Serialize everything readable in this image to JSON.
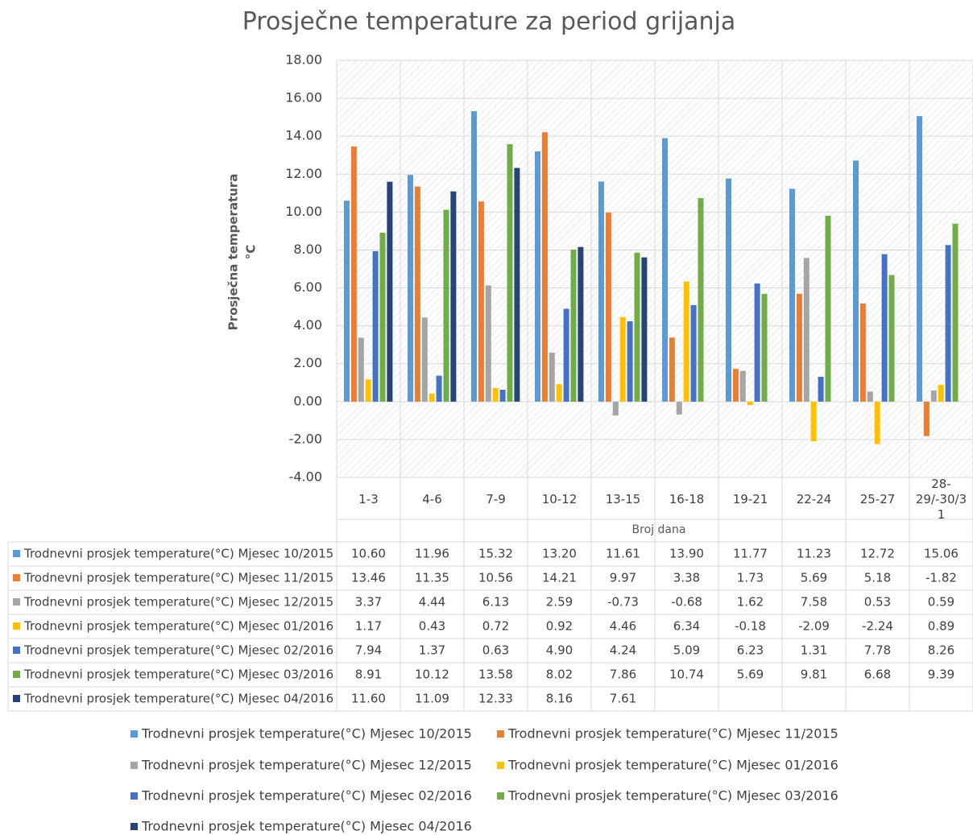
{
  "chart_data": {
    "type": "bar",
    "title": "Prosječne temperature za period grijanja",
    "ylabel": [
      "Prosječna temperatura",
      "°C"
    ],
    "xlabel": "Broj dana",
    "categories": [
      "1-3",
      "4-6",
      "7-9",
      "10-12",
      "13-15",
      "16-18",
      "19-21",
      "22-24",
      "25-27",
      "28-29/-30/31"
    ],
    "ylim": [
      -4,
      18
    ],
    "yticks": [
      {
        "value": 18,
        "label": "18.00"
      },
      {
        "value": 16,
        "label": "16.00"
      },
      {
        "value": 14,
        "label": "14.00"
      },
      {
        "value": 12,
        "label": "12.00"
      },
      {
        "value": 10,
        "label": "10.00"
      },
      {
        "value": 8,
        "label": "8.00"
      },
      {
        "value": 6,
        "label": "6.00"
      },
      {
        "value": 4,
        "label": "4.00"
      },
      {
        "value": 2,
        "label": "2.00"
      },
      {
        "value": 0,
        "label": "0.00"
      },
      {
        "value": -2,
        "label": "-2.00"
      },
      {
        "value": -4,
        "label": "-4.00"
      }
    ],
    "grid": true,
    "series": [
      {
        "name": "Trodnevni prosjek temperature(°C) Mjesec 10/2015",
        "color": "#5b9bd5",
        "values": [
          10.6,
          11.96,
          15.32,
          13.2,
          11.61,
          13.9,
          11.77,
          11.23,
          12.72,
          15.06
        ],
        "value_labels": [
          "10.60",
          "11.96",
          "15.32",
          "13.20",
          "11.61",
          "13.90",
          "11.77",
          "11.23",
          "12.72",
          "15.06"
        ]
      },
      {
        "name": "Trodnevni prosjek temperature(°C) Mjesec 11/2015",
        "color": "#ed7d31",
        "values": [
          13.46,
          11.35,
          10.56,
          14.21,
          9.97,
          3.38,
          1.73,
          5.69,
          5.18,
          -1.82
        ],
        "value_labels": [
          "13.46",
          "11.35",
          "10.56",
          "14.21",
          "9.97",
          "3.38",
          "1.73",
          "5.69",
          "5.18",
          "-1.82"
        ]
      },
      {
        "name": "Trodnevni prosjek temperature(°C) Mjesec 12/2015",
        "color": "#a5a5a5",
        "values": [
          3.37,
          4.44,
          6.13,
          2.59,
          -0.73,
          -0.68,
          1.62,
          7.58,
          0.53,
          0.59
        ],
        "value_labels": [
          "3.37",
          "4.44",
          "6.13",
          "2.59",
          "-0.73",
          "-0.68",
          "1.62",
          "7.58",
          "0.53",
          "0.59"
        ]
      },
      {
        "name": "Trodnevni prosjek temperature(°C) Mjesec 01/2016",
        "color": "#ffc000",
        "values": [
          1.17,
          0.43,
          0.72,
          0.92,
          4.46,
          6.34,
          -0.18,
          -2.09,
          -2.24,
          0.89
        ],
        "value_labels": [
          "1.17",
          "0.43",
          "0.72",
          "0.92",
          "4.46",
          "6.34",
          "-0.18",
          "-2.09",
          "-2.24",
          "0.89"
        ]
      },
      {
        "name": "Trodnevni prosjek temperature(°C) Mjesec 02/2016",
        "color": "#4472c4",
        "values": [
          7.94,
          1.37,
          0.63,
          4.9,
          4.24,
          5.09,
          6.23,
          1.31,
          7.78,
          8.26
        ],
        "value_labels": [
          "7.94",
          "1.37",
          "0.63",
          "4.90",
          "4.24",
          "5.09",
          "6.23",
          "1.31",
          "7.78",
          "8.26"
        ]
      },
      {
        "name": "Trodnevni prosjek temperature(°C) Mjesec 03/2016",
        "color": "#70ad47",
        "values": [
          8.91,
          10.12,
          13.58,
          8.02,
          7.86,
          10.74,
          5.69,
          9.81,
          6.68,
          9.39
        ],
        "value_labels": [
          "8.91",
          "10.12",
          "13.58",
          "8.02",
          "7.86",
          "10.74",
          "5.69",
          "9.81",
          "6.68",
          "9.39"
        ]
      },
      {
        "name": "Trodnevni prosjek temperature(°C) Mjesec 04/2016",
        "color": "#264478",
        "values": [
          11.6,
          11.09,
          12.33,
          8.16,
          7.61,
          null,
          null,
          null,
          null,
          null
        ],
        "value_labels": [
          "11.60",
          "11.09",
          "12.33",
          "8.16",
          "7.61",
          null,
          null,
          null,
          null,
          null
        ]
      }
    ]
  }
}
